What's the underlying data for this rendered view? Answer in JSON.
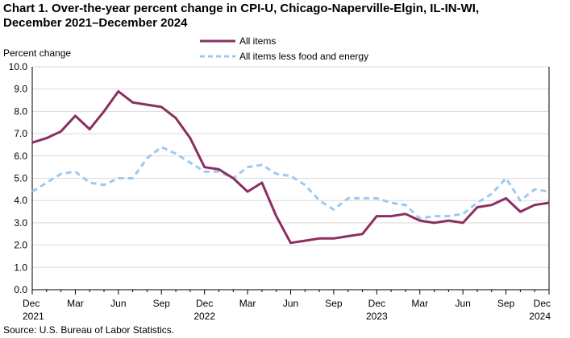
{
  "chart_data": {
    "type": "line",
    "title_line1": "Chart 1. Over-the-year percent change in CPI-U, Chicago-Naperville-Elgin,  IL-IN-WI,",
    "title_line2": "December 2021–December  2024",
    "ylabel": "Percent change",
    "ylim": [
      0,
      10
    ],
    "yticks": [
      "0.0",
      "1.0",
      "2.0",
      "3.0",
      "4.0",
      "5.0",
      "6.0",
      "7.0",
      "8.0",
      "9.0",
      "10.0"
    ],
    "x_tick_labels": [
      {
        "label": "Dec",
        "year": "2021"
      },
      {
        "label": "Mar",
        "year": ""
      },
      {
        "label": "Jun",
        "year": ""
      },
      {
        "label": "Sep",
        "year": ""
      },
      {
        "label": "Dec",
        "year": "2022"
      },
      {
        "label": "Mar",
        "year": ""
      },
      {
        "label": "Jun",
        "year": ""
      },
      {
        "label": "Sep",
        "year": ""
      },
      {
        "label": "Dec",
        "year": "2023"
      },
      {
        "label": "Mar",
        "year": ""
      },
      {
        "label": "Jun",
        "year": ""
      },
      {
        "label": "Sep",
        "year": ""
      },
      {
        "label": "Dec",
        "year": "2024"
      }
    ],
    "months": [
      "Dec 2021",
      "Jan 2022",
      "Feb 2022",
      "Mar 2022",
      "Apr 2022",
      "May 2022",
      "Jun 2022",
      "Jul 2022",
      "Aug 2022",
      "Sep 2022",
      "Oct 2022",
      "Nov 2022",
      "Dec 2022",
      "Jan 2023",
      "Feb 2023",
      "Mar 2023",
      "Apr 2023",
      "May 2023",
      "Jun 2023",
      "Jul 2023",
      "Aug 2023",
      "Sep 2023",
      "Oct 2023",
      "Nov 2023",
      "Dec 2023",
      "Jan 2024",
      "Feb 2024",
      "Mar 2024",
      "Apr 2024",
      "May 2024",
      "Jun 2024",
      "Jul 2024",
      "Aug 2024",
      "Sep 2024",
      "Oct 2024",
      "Nov 2024",
      "Dec 2024"
    ],
    "series": [
      {
        "name": "All items",
        "color": "#8b2f5f",
        "dash": "solid",
        "values": [
          6.6,
          6.8,
          7.1,
          7.8,
          7.2,
          8.0,
          8.9,
          8.4,
          8.3,
          8.2,
          7.7,
          6.8,
          5.5,
          5.4,
          5.0,
          4.4,
          4.8,
          3.3,
          2.1,
          2.2,
          2.3,
          2.3,
          2.4,
          2.5,
          3.3,
          3.3,
          3.4,
          3.1,
          3.0,
          3.1,
          3.0,
          3.7,
          3.8,
          4.1,
          3.5,
          3.8,
          3.9
        ]
      },
      {
        "name": "All items less food and energy",
        "color": "#9dc9f1",
        "dash": "dashed",
        "values": [
          4.4,
          4.8,
          5.2,
          5.3,
          4.8,
          4.7,
          5.0,
          5.0,
          5.9,
          6.4,
          6.1,
          5.7,
          5.3,
          5.3,
          5.0,
          5.5,
          5.6,
          5.2,
          5.1,
          4.7,
          4.0,
          3.6,
          4.1,
          4.1,
          4.1,
          3.9,
          3.8,
          3.2,
          3.3,
          3.3,
          3.4,
          3.9,
          4.3,
          5.0,
          4.0,
          4.5,
          4.4
        ]
      }
    ]
  },
  "source": "Source: U.S. Bureau  of Labor Statistics."
}
